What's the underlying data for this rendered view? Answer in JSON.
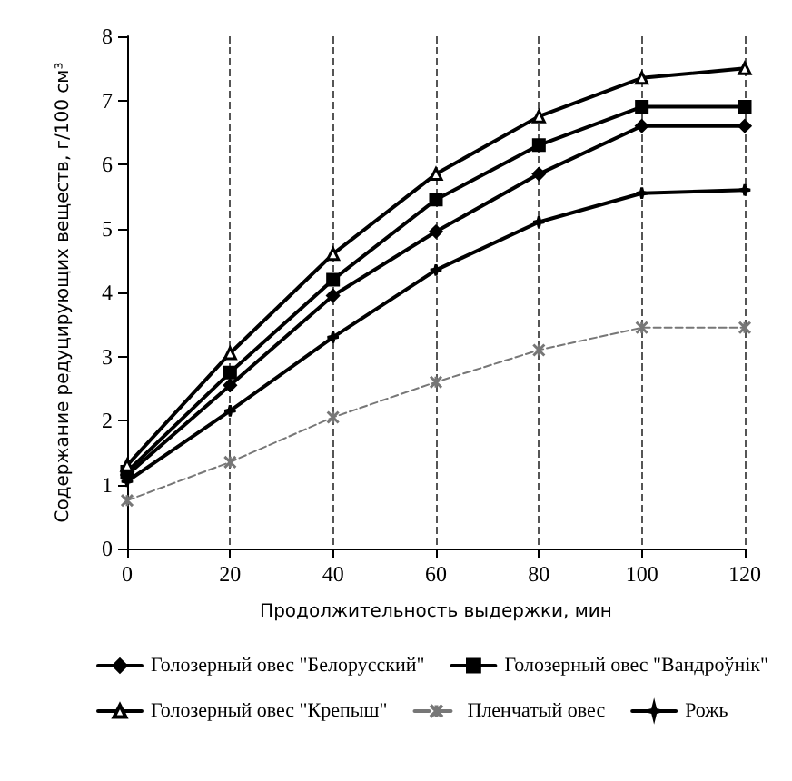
{
  "chart_data": {
    "type": "line",
    "xlabel": "Продолжительность выдержки, мин",
    "ylabel": "Содержание редуцирующих веществ, г/100 см³",
    "x": [
      0,
      20,
      40,
      60,
      80,
      100,
      120
    ],
    "xlim": [
      0,
      120
    ],
    "xticks": [
      0,
      20,
      40,
      60,
      80,
      100,
      120
    ],
    "ylim": [
      0,
      8
    ],
    "yticks": [
      0,
      1,
      2,
      3,
      4,
      5,
      6,
      7,
      8
    ],
    "grid": "x",
    "legend": "bottom",
    "series": [
      {
        "name": "Голозерный овес \"Белорусский\"",
        "color": "#000000",
        "marker": "diamond",
        "values": [
          1.15,
          2.55,
          3.95,
          4.95,
          5.85,
          6.6,
          6.6
        ]
      },
      {
        "name": "Голозерный овес \"Вандроўнік\"",
        "color": "#000000",
        "marker": "square",
        "values": [
          1.2,
          2.75,
          4.2,
          5.45,
          6.3,
          6.9,
          6.9
        ]
      },
      {
        "name": "Голозерный овес \"Крепыш\"",
        "color": "#000000",
        "marker": "triangle",
        "values": [
          1.3,
          3.05,
          4.6,
          5.85,
          6.75,
          7.35,
          7.5
        ]
      },
      {
        "name": "Пленчатый овес",
        "color": "#777777",
        "marker": "cross",
        "line_style": "dashed",
        "values": [
          0.75,
          1.35,
          2.05,
          2.6,
          3.1,
          3.45,
          3.45
        ]
      },
      {
        "name": "Рожь",
        "color": "#000000",
        "marker": "star",
        "values": [
          1.05,
          2.15,
          3.3,
          4.35,
          5.1,
          5.55,
          5.6
        ]
      }
    ]
  }
}
